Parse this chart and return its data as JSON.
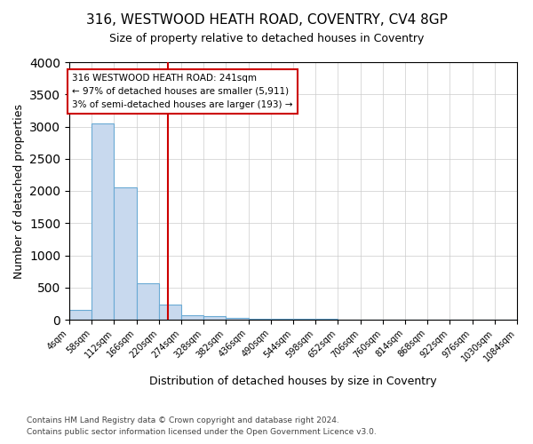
{
  "title1": "316, WESTWOOD HEATH ROAD, COVENTRY, CV4 8GP",
  "title2": "Size of property relative to detached houses in Coventry",
  "xlabel": "Distribution of detached houses by size in Coventry",
  "ylabel": "Number of detached properties",
  "bin_edges": [
    4,
    58,
    112,
    166,
    220,
    274,
    328,
    382,
    436,
    490,
    544,
    598,
    652,
    706,
    760,
    814,
    868,
    922,
    976,
    1030,
    1084
  ],
  "bin_counts": [
    150,
    3050,
    2060,
    560,
    230,
    75,
    55,
    30,
    20,
    15,
    10,
    8,
    6,
    5,
    4,
    3,
    3,
    2,
    2,
    2
  ],
  "bar_color": "#c8d9ee",
  "bar_edge_color": "#6aaad4",
  "property_size": 241,
  "vline_color": "#cc0000",
  "annotation_text": "316 WESTWOOD HEATH ROAD: 241sqm\n← 97% of detached houses are smaller (5,911)\n3% of semi-detached houses are larger (193) →",
  "annotation_box_edgecolor": "#cc0000",
  "annotation_fontsize": 7.5,
  "ylim": [
    0,
    4000
  ],
  "yticks": [
    0,
    500,
    1000,
    1500,
    2000,
    2500,
    3000,
    3500,
    4000
  ],
  "footer1": "Contains HM Land Registry data © Crown copyright and database right 2024.",
  "footer2": "Contains public sector information licensed under the Open Government Licence v3.0.",
  "title1_fontsize": 11,
  "title2_fontsize": 9,
  "xlabel_fontsize": 9,
  "ylabel_fontsize": 9,
  "tick_fontsize": 7,
  "footer_fontsize": 6.5
}
